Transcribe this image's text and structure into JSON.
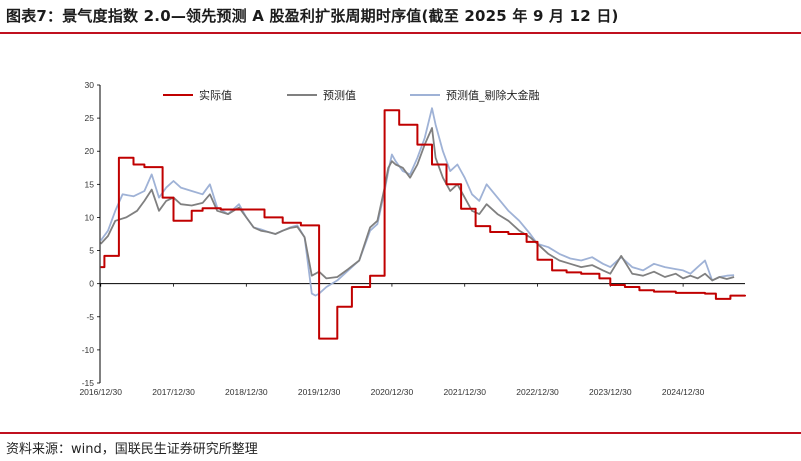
{
  "title": "图表7：景气度指数 2.0—领先预测 A 股盈利扩张周期时序值(截至 2025 年 9 月 12 日)",
  "source": "资料来源：wind，国联民生证券研究所整理",
  "colors": {
    "rule": "#c0101f",
    "actual": "#c00000",
    "forecast": "#808080",
    "forecast_ex_fin": "#9fb2d6",
    "axis": "#000000"
  },
  "chart_data": {
    "type": "line",
    "title": "",
    "xlabel": "",
    "ylabel": "",
    "ylim": [
      -15,
      30
    ],
    "yticks": [
      30,
      25,
      20,
      15,
      10,
      5,
      0,
      -5,
      -10,
      -15
    ],
    "xlim": [
      2016.99,
      2025.85
    ],
    "xticks": [
      {
        "label": "2016/12/30",
        "x": 2017.0
      },
      {
        "label": "2017/12/30",
        "x": 2018.0
      },
      {
        "label": "2018/12/30",
        "x": 2019.0
      },
      {
        "label": "2019/12/30",
        "x": 2020.0
      },
      {
        "label": "2020/12/30",
        "x": 2021.0
      },
      {
        "label": "2021/12/30",
        "x": 2022.0
      },
      {
        "label": "2022/12/30",
        "x": 2023.0
      },
      {
        "label": "2023/12/30",
        "x": 2024.0
      },
      {
        "label": "2024/12/30",
        "x": 2025.0
      }
    ],
    "grid": false,
    "legend": "top-center",
    "series": [
      {
        "name": "实际值",
        "style": "step",
        "color": "#c00000",
        "x": [
          2017.0,
          2017.05,
          2017.25,
          2017.45,
          2017.6,
          2017.85,
          2018.0,
          2018.25,
          2018.4,
          2018.65,
          2019.25,
          2019.5,
          2019.75,
          2020.0,
          2020.25,
          2020.45,
          2020.7,
          2020.9,
          2021.1,
          2021.35,
          2021.55,
          2021.75,
          2021.95,
          2022.15,
          2022.35,
          2022.6,
          2022.85,
          2023.0,
          2023.2,
          2023.4,
          2023.6,
          2023.85,
          2024.0,
          2024.2,
          2024.4,
          2024.6,
          2024.9,
          2025.3,
          2025.45,
          2025.65,
          2025.85
        ],
        "y": [
          2.5,
          4.2,
          19.0,
          18.0,
          17.6,
          13.0,
          9.5,
          11.0,
          11.4,
          11.2,
          10.0,
          9.2,
          8.8,
          -8.3,
          -3.5,
          -0.5,
          1.2,
          26.2,
          24.0,
          21.0,
          18.0,
          15.0,
          11.3,
          8.7,
          7.8,
          7.5,
          6.3,
          3.6,
          2.0,
          1.7,
          1.5,
          0.8,
          -0.2,
          -0.5,
          -1.0,
          -1.2,
          -1.4,
          -1.5,
          -2.3,
          -1.8,
          -1.7
        ]
      },
      {
        "name": "预测值",
        "style": "line",
        "color": "#808080",
        "x": [
          2017.0,
          2017.1,
          2017.2,
          2017.35,
          2017.5,
          2017.6,
          2017.7,
          2017.8,
          2017.9,
          2018.0,
          2018.1,
          2018.25,
          2018.4,
          2018.5,
          2018.6,
          2018.75,
          2018.9,
          2019.0,
          2019.1,
          2019.2,
          2019.3,
          2019.4,
          2019.5,
          2019.6,
          2019.7,
          2019.8,
          2019.9,
          2019.95,
          2020.0,
          2020.1,
          2020.25,
          2020.4,
          2020.55,
          2020.7,
          2020.8,
          2020.9,
          2020.95,
          2021.0,
          2021.05,
          2021.15,
          2021.25,
          2021.35,
          2021.45,
          2021.55,
          2021.6,
          2021.7,
          2021.8,
          2021.9,
          2022.0,
          2022.1,
          2022.2,
          2022.3,
          2022.45,
          2022.6,
          2022.75,
          2022.9,
          2023.0,
          2023.15,
          2023.3,
          2023.45,
          2023.6,
          2023.75,
          2023.9,
          2024.0,
          2024.15,
          2024.3,
          2024.45,
          2024.6,
          2024.75,
          2024.9,
          2025.0,
          2025.1,
          2025.2,
          2025.3,
          2025.4,
          2025.5,
          2025.6,
          2025.7
        ],
        "y": [
          6.0,
          7.2,
          9.5,
          10.0,
          11.0,
          12.5,
          14.2,
          11.0,
          12.5,
          13.0,
          12.0,
          11.8,
          12.2,
          13.5,
          11.0,
          10.5,
          11.5,
          10.0,
          8.5,
          8.0,
          7.8,
          7.5,
          8.0,
          8.4,
          8.6,
          7.0,
          1.2,
          1.5,
          1.8,
          0.8,
          1.0,
          2.2,
          3.5,
          8.5,
          9.5,
          14.5,
          17.5,
          18.5,
          18.0,
          17.5,
          16.0,
          18.0,
          21.0,
          23.5,
          19.0,
          16.0,
          14.0,
          15.0,
          13.0,
          11.0,
          10.5,
          12.0,
          10.5,
          9.5,
          8.0,
          7.0,
          6.0,
          4.5,
          3.5,
          3.0,
          2.5,
          2.8,
          2.0,
          1.5,
          4.2,
          1.5,
          1.2,
          1.8,
          1.0,
          1.5,
          0.8,
          1.2,
          0.8,
          1.5,
          0.5,
          1.0,
          0.7,
          1.0
        ]
      },
      {
        "name": "预测值_剔除大金融",
        "style": "line",
        "color": "#9fb2d6",
        "x": [
          2017.0,
          2017.1,
          2017.2,
          2017.3,
          2017.45,
          2017.6,
          2017.7,
          2017.8,
          2017.9,
          2018.0,
          2018.1,
          2018.25,
          2018.4,
          2018.5,
          2018.6,
          2018.75,
          2018.9,
          2019.0,
          2019.1,
          2019.2,
          2019.3,
          2019.4,
          2019.5,
          2019.6,
          2019.7,
          2019.8,
          2019.9,
          2019.95,
          2020.0,
          2020.1,
          2020.25,
          2020.4,
          2020.55,
          2020.7,
          2020.8,
          2020.9,
          2020.95,
          2021.0,
          2021.05,
          2021.15,
          2021.25,
          2021.35,
          2021.45,
          2021.55,
          2021.6,
          2021.7,
          2021.8,
          2021.9,
          2022.0,
          2022.1,
          2022.2,
          2022.3,
          2022.45,
          2022.6,
          2022.75,
          2022.9,
          2023.0,
          2023.15,
          2023.3,
          2023.45,
          2023.6,
          2023.75,
          2023.9,
          2024.0,
          2024.15,
          2024.3,
          2024.45,
          2024.6,
          2024.75,
          2024.9,
          2025.0,
          2025.1,
          2025.2,
          2025.3,
          2025.4,
          2025.5,
          2025.6,
          2025.7
        ],
        "y": [
          6.5,
          8.0,
          11.0,
          13.5,
          13.2,
          14.0,
          16.5,
          13.0,
          14.5,
          15.5,
          14.5,
          14.0,
          13.5,
          15.0,
          11.5,
          10.5,
          12.0,
          10.0,
          8.5,
          8.2,
          7.8,
          7.5,
          8.0,
          8.5,
          8.8,
          7.0,
          -1.5,
          -1.8,
          -1.5,
          -0.5,
          0.5,
          2.0,
          3.5,
          8.0,
          9.0,
          14.0,
          17.0,
          19.5,
          18.5,
          17.0,
          16.5,
          19.0,
          22.0,
          26.5,
          24.0,
          20.0,
          17.0,
          18.0,
          16.0,
          13.5,
          12.5,
          15.0,
          13.0,
          11.0,
          9.5,
          7.5,
          6.0,
          5.5,
          4.5,
          3.8,
          3.5,
          4.0,
          3.0,
          2.5,
          4.0,
          2.5,
          2.0,
          3.0,
          2.5,
          2.2,
          2.0,
          1.5,
          2.5,
          3.5,
          0.5,
          1.0,
          1.2,
          1.3
        ]
      }
    ]
  }
}
